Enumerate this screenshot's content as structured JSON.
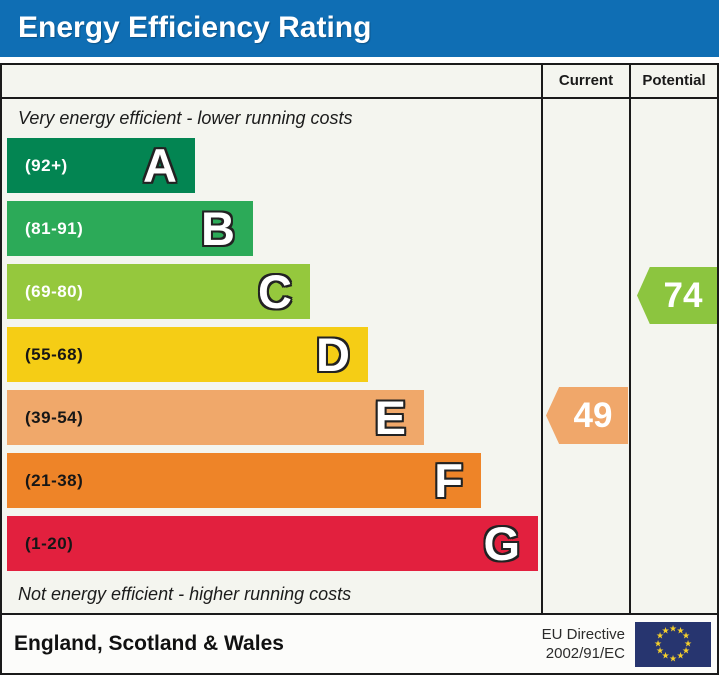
{
  "title": "Energy Efficiency Rating",
  "columns": {
    "current": "Current",
    "potential": "Potential"
  },
  "captions": {
    "top": "Very energy efficient - lower running costs",
    "bottom": "Not energy efficient - higher running costs"
  },
  "bands": [
    {
      "letter": "A",
      "range": "(92+)",
      "color": "#038552"
    },
    {
      "letter": "B",
      "range": "(81-91)",
      "color": "#2caa58"
    },
    {
      "letter": "C",
      "range": "(69-80)",
      "color": "#95c83d"
    },
    {
      "letter": "D",
      "range": "(55-68)",
      "color": "#f5cd15"
    },
    {
      "letter": "E",
      "range": "(39-54)",
      "color": "#f0a86a"
    },
    {
      "letter": "F",
      "range": "(21-38)",
      "color": "#ee8428"
    },
    {
      "letter": "G",
      "range": "(1-20)",
      "color": "#e2203e"
    }
  ],
  "ratings": {
    "current": {
      "value": "49",
      "band": "E",
      "color": "#f0a76a"
    },
    "potential": {
      "value": "74",
      "band": "C",
      "color": "#8cc53f"
    }
  },
  "footer": {
    "region": "England, Scotland & Wales",
    "directive_line1": "EU Directive",
    "directive_line2": "2002/91/EC"
  },
  "colors": {
    "header_bg": "#0f6eb4",
    "flag_bg": "#27356f",
    "flag_stars": "#f6d02b",
    "border": "#1a1a1a"
  },
  "chart_data": {
    "type": "bar",
    "title": "Energy Efficiency Rating",
    "categories": [
      "A",
      "B",
      "C",
      "D",
      "E",
      "F",
      "G"
    ],
    "band_ranges": [
      "92+",
      "81-91",
      "69-80",
      "55-68",
      "39-54",
      "21-38",
      "1-20"
    ],
    "band_colors": [
      "#038552",
      "#2caa58",
      "#95c83d",
      "#f5cd15",
      "#f0a86a",
      "#ee8428",
      "#e2203e"
    ],
    "bar_widths_relative": [
      0.35,
      0.46,
      0.57,
      0.68,
      0.78,
      0.89,
      1.0
    ],
    "columns": [
      "Current",
      "Potential"
    ],
    "current": {
      "value": 49,
      "band": "E"
    },
    "potential": {
      "value": 74,
      "band": "C"
    },
    "annotations": [
      "Very energy efficient - lower running costs",
      "Not energy efficient - higher running costs",
      "England, Scotland & Wales",
      "EU Directive 2002/91/EC"
    ],
    "legend_position": "none",
    "grid": false
  }
}
